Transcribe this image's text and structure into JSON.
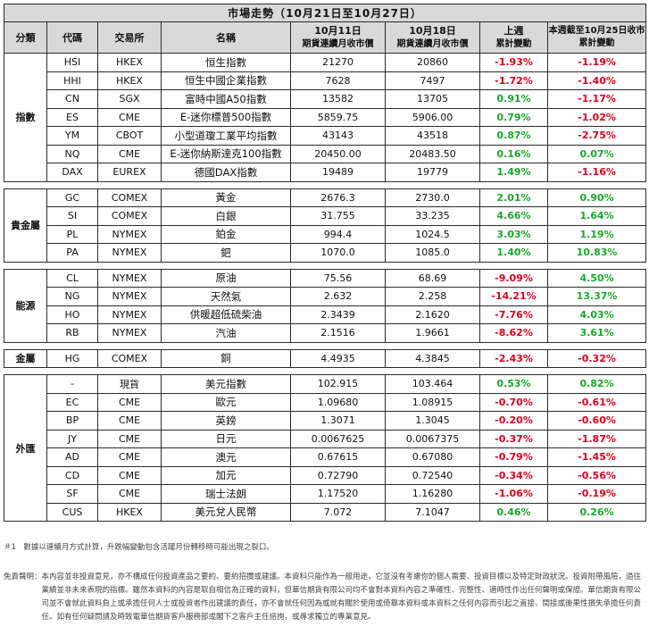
{
  "title": "市場走勢（10月21日至10月27日）",
  "headers": {
    "category": "分類",
    "code": "代碼",
    "exchange": "交易所",
    "name": "名稱",
    "col_prev_line1": "10月11日",
    "col_prev_line2": "期貨連續月收市價",
    "col_cur_line1": "10月18日",
    "col_cur_line2": "期貨連續月收市價",
    "col_week_line1": "上週",
    "col_week_line2": "累計變動",
    "col_ytd_line1": "本週截至10月25日收市",
    "col_ytd_line2": "累計變動"
  },
  "groups": [
    {
      "category": "指數",
      "rows": [
        {
          "code": "HSI",
          "exchange": "HKEX",
          "name": "恒生指數",
          "prev": "21270",
          "cur": "20860",
          "week": "-1.93%",
          "ytd": "-1.19%"
        },
        {
          "code": "HHI",
          "exchange": "HKEX",
          "name": "恒生中國企業指數",
          "prev": "7628",
          "cur": "7497",
          "week": "-1.72%",
          "ytd": "-1.40%"
        },
        {
          "code": "CN",
          "exchange": "SGX",
          "name": "富時中國A50指數",
          "prev": "13582",
          "cur": "13705",
          "week": "0.91%",
          "ytd": "-1.17%"
        },
        {
          "code": "ES",
          "exchange": "CME",
          "name": "E-迷你標普500指數",
          "prev": "5859.75",
          "cur": "5906.00",
          "week": "0.79%",
          "ytd": "-1.02%"
        },
        {
          "code": "YM",
          "exchange": "CBOT",
          "name": "小型道瓊工業平均指數",
          "prev": "43143",
          "cur": "43518",
          "week": "0.87%",
          "ytd": "-2.75%"
        },
        {
          "code": "NQ",
          "exchange": "CME",
          "name": "E-迷你納斯達克100指數",
          "prev": "20450.00",
          "cur": "20483.50",
          "week": "0.16%",
          "ytd": "0.07%"
        },
        {
          "code": "DAX",
          "exchange": "EUREX",
          "name": "德國DAX指數",
          "prev": "19489",
          "cur": "19779",
          "week": "1.49%",
          "ytd": "-1.16%"
        }
      ]
    },
    {
      "category": "貴金屬",
      "rows": [
        {
          "code": "GC",
          "exchange": "COMEX",
          "name": "黃金",
          "prev": "2676.3",
          "cur": "2730.0",
          "week": "2.01%",
          "ytd": "0.90%"
        },
        {
          "code": "SI",
          "exchange": "COMEX",
          "name": "白銀",
          "prev": "31.755",
          "cur": "33.235",
          "week": "4.66%",
          "ytd": "1.64%"
        },
        {
          "code": "PL",
          "exchange": "NYMEX",
          "name": "鉑金",
          "prev": "994.4",
          "cur": "1024.5",
          "week": "3.03%",
          "ytd": "1.19%"
        },
        {
          "code": "PA",
          "exchange": "NYMEX",
          "name": "鈀",
          "prev": "1070.0",
          "cur": "1085.0",
          "week": "1.40%",
          "ytd": "10.83%"
        }
      ]
    },
    {
      "category": "能源",
      "rows": [
        {
          "code": "CL",
          "exchange": "NYMEX",
          "name": "原油",
          "prev": "75.56",
          "cur": "68.69",
          "week": "-9.09%",
          "ytd": "4.50%"
        },
        {
          "code": "NG",
          "exchange": "NYMEX",
          "name": "天然氣",
          "prev": "2.632",
          "cur": "2.258",
          "week": "-14.21%",
          "ytd": "13.37%"
        },
        {
          "code": "HO",
          "exchange": "NYMEX",
          "name": "供暖超低硫柴油",
          "prev": "2.3439",
          "cur": "2.1620",
          "week": "-7.76%",
          "ytd": "4.03%"
        },
        {
          "code": "RB",
          "exchange": "NYMEX",
          "name": "汽油",
          "prev": "2.1516",
          "cur": "1.9661",
          "week": "-8.62%",
          "ytd": "3.61%"
        }
      ]
    },
    {
      "category": "金屬",
      "rows": [
        {
          "code": "HG",
          "exchange": "COMEX",
          "name": "銅",
          "prev": "4.4935",
          "cur": "4.3845",
          "week": "-2.43%",
          "ytd": "-0.32%"
        }
      ]
    },
    {
      "category": "外匯",
      "rows": [
        {
          "code": "-",
          "exchange": "現貨",
          "name": "美元指數",
          "prev": "102.915",
          "cur": "103.464",
          "week": "0.53%",
          "ytd": "0.82%"
        },
        {
          "code": "EC",
          "exchange": "CME",
          "name": "歐元",
          "prev": "1.09680",
          "cur": "1.08915",
          "week": "-0.70%",
          "ytd": "-0.61%"
        },
        {
          "code": "BP",
          "exchange": "CME",
          "name": "英鎊",
          "prev": "1.3071",
          "cur": "1.3045",
          "week": "-0.20%",
          "ytd": "-0.60%"
        },
        {
          "code": "JY",
          "exchange": "CME",
          "name": "日元",
          "prev": "0.0067625",
          "cur": "0.0067375",
          "week": "-0.37%",
          "ytd": "-1.87%"
        },
        {
          "code": "AD",
          "exchange": "CME",
          "name": "澳元",
          "prev": "0.67615",
          "cur": "0.67080",
          "week": "-0.79%",
          "ytd": "-1.45%"
        },
        {
          "code": "CD",
          "exchange": "CME",
          "name": "加元",
          "prev": "0.72790",
          "cur": "0.72540",
          "week": "-0.34%",
          "ytd": "-0.56%"
        },
        {
          "code": "SF",
          "exchange": "CME",
          "name": "瑞士法朗",
          "prev": "1.17520",
          "cur": "1.16280",
          "week": "-1.06%",
          "ytd": "-0.19%"
        },
        {
          "code": "CUS",
          "exchange": "HKEX",
          "name": "美元兌人民幣",
          "prev": "7.072",
          "cur": "7.1047",
          "week": "0.46%",
          "ytd": "0.26%"
        }
      ]
    }
  ],
  "colors": {
    "positive": "#18a82a",
    "negative": "#e0001b",
    "header_bg": "#d9d9d9"
  },
  "note1": "＃1　數據以連續月方式計算，升跌幅變動包含活躍月份轉移時可能出現之裂口。",
  "disclaimer_label": "免責聲明：",
  "disclaimer": "本內容並非投資意見，亦不構成任何投資產品之要約、要約招攬或建議。本資料只能作為一般用途，它並沒有考慮你的個人需要、投資目標以及特定財政狀況。投資附帶風險，過往業績並非未來表現的指標。雖然本資料的內容是取自相信為正確的資料，但華信期貨有限公司均不會對本資料內容之準確性、完整性、適時性作出任何聲明或保證。華信期貨有限公司並不會就此資料負上或承擔任何人士或投資者作出建議的責任，亦不會就任何因為或就有關於使用或倚靠本資料或本資料之任何內容而引起之直接、間接或後果性損失承擔任何責任。如有任何疑問請及時致電華信期貨客戶服務部或閣下之客戶主任諮詢，或尋求獨立的專業意見。"
}
